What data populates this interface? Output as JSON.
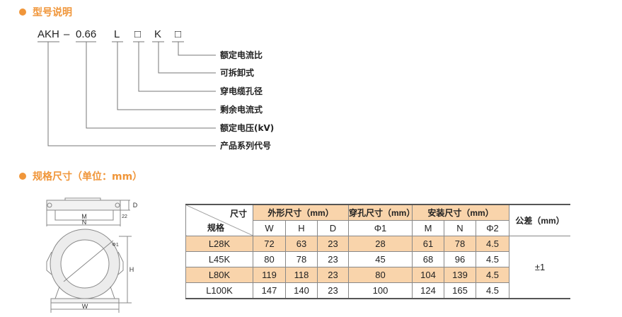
{
  "colors": {
    "accent": "#f0963a",
    "highlight": "#f9d4ab"
  },
  "section1": {
    "title": "型号说明"
  },
  "model": {
    "parts": [
      "AKH",
      "–",
      "0.66",
      "L",
      "□",
      "K",
      "□"
    ],
    "labels": [
      "额定电流比",
      "可拆卸式",
      "穿电缆孔径",
      "剩余电流式",
      "额定电压(kV)",
      "产品系列代号"
    ]
  },
  "section2": {
    "title": "规格尺寸（单位：mm）"
  },
  "drawing": {
    "labels": {
      "M": "M",
      "N": "N",
      "D": "D",
      "t": "22",
      "H": "H",
      "W": "W",
      "phi": "Φ1"
    }
  },
  "table": {
    "corner_top": "尺寸",
    "corner_bottom": "规格",
    "groups": [
      "外形尺寸（mm）",
      "穿孔尺寸（mm）",
      "安装尺寸（mm）"
    ],
    "tolerance_header": "公差（mm）",
    "columns": [
      "W",
      "H",
      "D",
      "Φ1",
      "M",
      "N",
      "Φ2"
    ],
    "rows": [
      {
        "model": "L28K",
        "values": [
          "72",
          "63",
          "23",
          "28",
          "61",
          "78",
          "4.5"
        ]
      },
      {
        "model": "L45K",
        "values": [
          "80",
          "78",
          "23",
          "45",
          "68",
          "96",
          "4.5"
        ]
      },
      {
        "model": "L80K",
        "values": [
          "119",
          "118",
          "23",
          "80",
          "104",
          "139",
          "4.5"
        ]
      },
      {
        "model": "L100K",
        "values": [
          "147",
          "140",
          "23",
          "100",
          "124",
          "165",
          "4.5"
        ]
      }
    ],
    "tolerance": "±1"
  }
}
